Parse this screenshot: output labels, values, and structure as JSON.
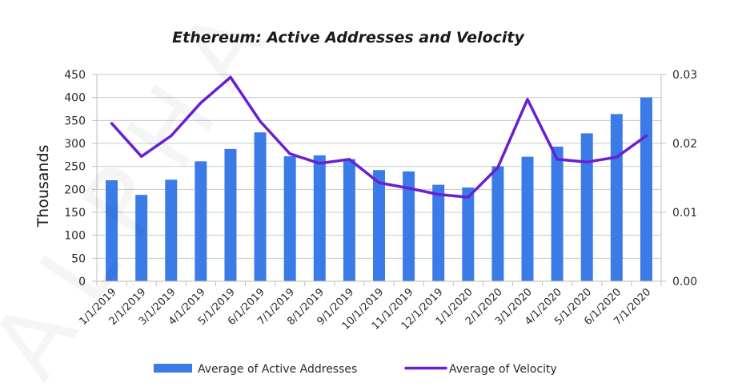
{
  "chart_data": {
    "type": "bar",
    "title": "Ethereum: Active Addresses and Velocity",
    "ylabel": "Thousands",
    "ylim": [
      0,
      450
    ],
    "yticks": [
      "0",
      "50",
      "100",
      "150",
      "200",
      "250",
      "300",
      "350",
      "400",
      "450"
    ],
    "y2lim": [
      0,
      0.03
    ],
    "y2ticks": [
      "0.00",
      "0.01",
      "0.02",
      "0.03"
    ],
    "categories": [
      "1/1/2019",
      "2/1/2019",
      "3/1/2019",
      "4/1/2019",
      "5/1/2019",
      "6/1/2019",
      "7/1/2019",
      "8/1/2019",
      "9/1/2019",
      "10/1/2019",
      "11/1/2019",
      "12/1/2019",
      "1/1/2020",
      "2/1/2020",
      "3/1/2020",
      "4/1/2020",
      "5/1/2020",
      "6/1/2020",
      "7/1/2020"
    ],
    "series": [
      {
        "name": "Average of Active Addresses",
        "type": "bar",
        "axis": "left",
        "color": "#3b7be8",
        "values": [
          220,
          188,
          221,
          261,
          288,
          324,
          272,
          274,
          266,
          242,
          239,
          210,
          204,
          250,
          271,
          293,
          322,
          364,
          400
        ]
      },
      {
        "name": "Average of Velocity",
        "type": "line",
        "axis": "right",
        "color": "#6a1fd1",
        "values": [
          0.0229,
          0.0181,
          0.0211,
          0.0259,
          0.0296,
          0.0232,
          0.0185,
          0.0171,
          0.0177,
          0.0143,
          0.0135,
          0.0126,
          0.0122,
          0.0165,
          0.0264,
          0.0177,
          0.0173,
          0.018,
          0.0211
        ]
      }
    ],
    "grid": true,
    "legend": "bottom"
  },
  "watermark": "ALPHA DIGITAL"
}
